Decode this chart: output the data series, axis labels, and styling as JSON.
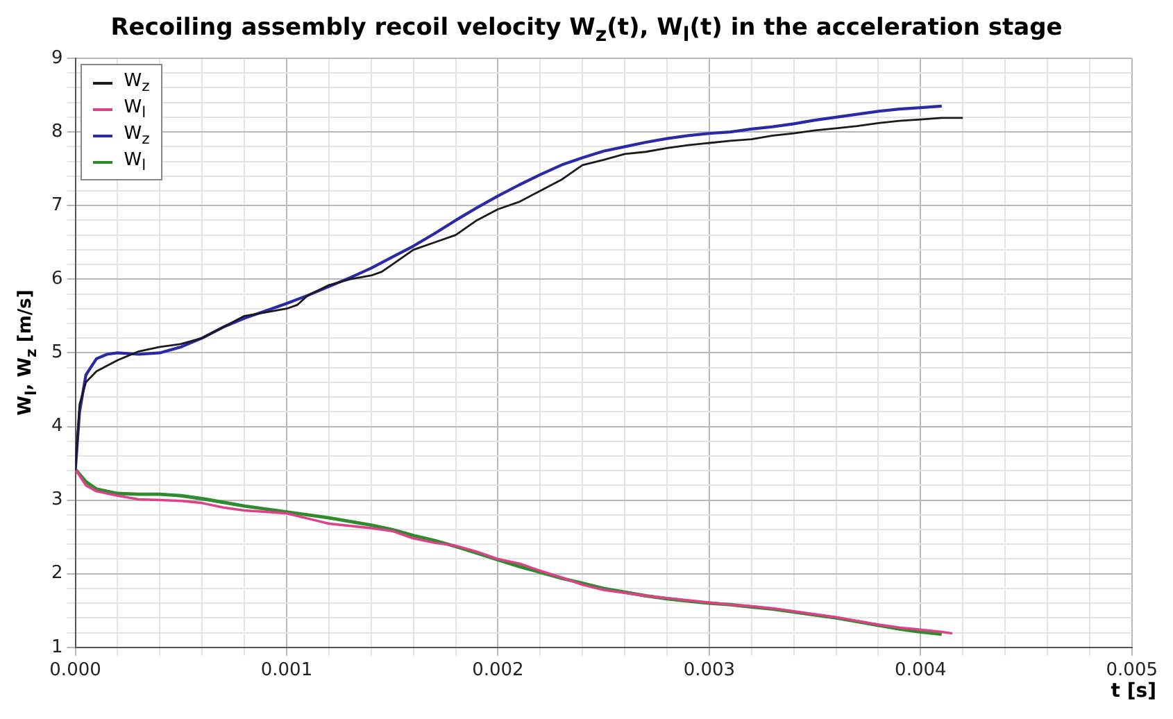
{
  "chart_data": {
    "type": "line",
    "title": "Recoiling assembly recoil velocity W$_{z}$(t), W$_{l}$(t) in the acceleration stage",
    "xlabel": "t [s]",
    "ylabel": "W$_{l}$, W$_{z}$ [m/s]",
    "xlim": [
      0,
      0.005
    ],
    "ylim": [
      1,
      9
    ],
    "xticks": [
      {
        "value": 0,
        "label": "0.000"
      },
      {
        "value": 0.0002,
        "label": null
      },
      {
        "value": 0.0004,
        "label": null
      },
      {
        "value": 0.0006,
        "label": null
      },
      {
        "value": 0.0008,
        "label": null
      },
      {
        "value": 0.001,
        "label": "0.001"
      },
      {
        "value": 0.0012,
        "label": null
      },
      {
        "value": 0.0014,
        "label": null
      },
      {
        "value": 0.0016,
        "label": null
      },
      {
        "value": 0.0018,
        "label": null
      },
      {
        "value": 0.002,
        "label": "0.002"
      },
      {
        "value": 0.0022,
        "label": null
      },
      {
        "value": 0.0024,
        "label": null
      },
      {
        "value": 0.0026,
        "label": null
      },
      {
        "value": 0.0028,
        "label": null
      },
      {
        "value": 0.003,
        "label": "0.003"
      },
      {
        "value": 0.0032,
        "label": null
      },
      {
        "value": 0.0034,
        "label": null
      },
      {
        "value": 0.0036,
        "label": null
      },
      {
        "value": 0.0038,
        "label": null
      },
      {
        "value": 0.004,
        "label": "0.004"
      },
      {
        "value": 0.0042,
        "label": null
      },
      {
        "value": 0.0044,
        "label": null
      },
      {
        "value": 0.0046,
        "label": null
      },
      {
        "value": 0.0048,
        "label": null
      },
      {
        "value": 0.005,
        "label": "0.005"
      }
    ],
    "yticks": [
      1,
      {
        "value": 1.2,
        "label": null
      },
      {
        "value": 1.4,
        "label": null
      },
      {
        "value": 1.6,
        "label": null
      },
      {
        "value": 1.8,
        "label": null
      },
      2,
      {
        "value": 2.2,
        "label": null
      },
      {
        "value": 2.4,
        "label": null
      },
      {
        "value": 2.6,
        "label": null
      },
      {
        "value": 2.8,
        "label": null
      },
      3,
      {
        "value": 3.2,
        "label": null
      },
      {
        "value": 3.4,
        "label": null
      },
      {
        "value": 3.6,
        "label": null
      },
      {
        "value": 3.8,
        "label": null
      },
      4,
      {
        "value": 4.2,
        "label": null
      },
      {
        "value": 4.4,
        "label": null
      },
      {
        "value": 4.6,
        "label": null
      },
      {
        "value": 4.8,
        "label": null
      },
      5,
      {
        "value": 5.2,
        "label": null
      },
      {
        "value": 5.4,
        "label": null
      },
      {
        "value": 5.6,
        "label": null
      },
      {
        "value": 5.8,
        "label": null
      },
      6,
      {
        "value": 6.2,
        "label": null
      },
      {
        "value": 6.4,
        "label": null
      },
      {
        "value": 6.6,
        "label": null
      },
      {
        "value": 6.8,
        "label": null
      },
      7,
      {
        "value": 7.2,
        "label": null
      },
      {
        "value": 7.4,
        "label": null
      },
      {
        "value": 7.6,
        "label": null
      },
      {
        "value": 7.8,
        "label": null
      },
      8,
      {
        "value": 8.2,
        "label": null
      },
      {
        "value": 8.4,
        "label": null
      },
      {
        "value": 8.6,
        "label": null
      },
      {
        "value": 8.8,
        "label": null
      },
      9
    ],
    "grid": true,
    "legend": "top left",
    "marker": "none",
    "line_style": "solid",
    "series": [
      {
        "name": "W$_{z}$",
        "color": "#1a1a1a",
        "x": [
          0,
          2e-05,
          5e-05,
          0.0001,
          0.0002,
          0.0003,
          0.0004,
          0.0005,
          0.0006,
          0.0007,
          0.0008,
          0.0009,
          0.001,
          0.00105,
          0.0011,
          0.0012,
          0.0013,
          0.0014,
          0.00145,
          0.0015,
          0.0016,
          0.0017,
          0.0018,
          0.0019,
          0.002,
          0.0021,
          0.0022,
          0.0023,
          0.0024,
          0.0025,
          0.0026,
          0.0027,
          0.0028,
          0.0029,
          0.003,
          0.0031,
          0.0032,
          0.0033,
          0.0034,
          0.0035,
          0.0036,
          0.0037,
          0.0038,
          0.0039,
          0.004,
          0.0041,
          0.0042
        ],
        "values": [
          3.4,
          4.3,
          4.6,
          4.75,
          4.9,
          5.02,
          5.08,
          5.12,
          5.2,
          5.35,
          5.5,
          5.55,
          5.6,
          5.65,
          5.78,
          5.92,
          6.0,
          6.05,
          6.1,
          6.2,
          6.4,
          6.5,
          6.6,
          6.8,
          6.95,
          7.05,
          7.2,
          7.35,
          7.55,
          7.62,
          7.7,
          7.73,
          7.78,
          7.82,
          7.85,
          7.88,
          7.9,
          7.95,
          7.98,
          8.02,
          8.05,
          8.08,
          8.12,
          8.15,
          8.17,
          8.19,
          8.19
        ]
      },
      {
        "name": "W$_{l}$",
        "color": "#e0408a",
        "x": [
          0,
          5e-05,
          0.0001,
          0.0002,
          0.0003,
          0.0004,
          0.0005,
          0.0006,
          0.0007,
          0.0008,
          0.0009,
          0.001,
          0.0011,
          0.0012,
          0.0013,
          0.0014,
          0.0015,
          0.0016,
          0.0017,
          0.0018,
          0.0019,
          0.002,
          0.0021,
          0.0022,
          0.0023,
          0.0024,
          0.0025,
          0.0026,
          0.0027,
          0.0028,
          0.0029,
          0.003,
          0.0031,
          0.0032,
          0.0033,
          0.0034,
          0.0035,
          0.0036,
          0.0037,
          0.0038,
          0.0039,
          0.004,
          0.0041,
          0.00415
        ],
        "values": [
          3.42,
          3.2,
          3.12,
          3.06,
          3.01,
          3.0,
          2.99,
          2.96,
          2.9,
          2.86,
          2.84,
          2.82,
          2.75,
          2.68,
          2.65,
          2.62,
          2.58,
          2.48,
          2.42,
          2.38,
          2.3,
          2.2,
          2.14,
          2.04,
          1.95,
          1.85,
          1.78,
          1.74,
          1.7,
          1.67,
          1.64,
          1.61,
          1.58,
          1.56,
          1.53,
          1.49,
          1.45,
          1.41,
          1.36,
          1.31,
          1.27,
          1.24,
          1.21,
          1.19
        ]
      },
      {
        "name": "W$_{z}$",
        "color": "#2a2aa8",
        "x": [
          0,
          2e-05,
          5e-05,
          0.0001,
          0.00015,
          0.0002,
          0.0003,
          0.0004,
          0.0005,
          0.0006,
          0.0007,
          0.0008,
          0.0009,
          0.001,
          0.0011,
          0.0012,
          0.0013,
          0.0014,
          0.0015,
          0.0016,
          0.0017,
          0.0018,
          0.0019,
          0.002,
          0.0021,
          0.0022,
          0.0023,
          0.0024,
          0.0025,
          0.0026,
          0.0027,
          0.0028,
          0.0029,
          0.003,
          0.0031,
          0.0032,
          0.0033,
          0.0034,
          0.0035,
          0.0036,
          0.0037,
          0.0038,
          0.0039,
          0.004,
          0.0041
        ],
        "values": [
          3.4,
          4.2,
          4.7,
          4.92,
          4.98,
          5.0,
          4.98,
          5.0,
          5.08,
          5.2,
          5.35,
          5.47,
          5.57,
          5.67,
          5.78,
          5.9,
          6.02,
          6.15,
          6.3,
          6.45,
          6.62,
          6.8,
          6.97,
          7.13,
          7.28,
          7.42,
          7.55,
          7.65,
          7.74,
          7.8,
          7.86,
          7.91,
          7.95,
          7.98,
          8.0,
          8.04,
          8.07,
          8.11,
          8.16,
          8.2,
          8.24,
          8.28,
          8.31,
          8.33,
          8.35
        ]
      },
      {
        "name": "W$_{l}$",
        "color": "#2e8b2e",
        "x": [
          0,
          5e-05,
          0.0001,
          0.0002,
          0.0003,
          0.0004,
          0.0005,
          0.0006,
          0.0007,
          0.0008,
          0.0009,
          0.001,
          0.0011,
          0.0012,
          0.0013,
          0.0014,
          0.0015,
          0.0016,
          0.0017,
          0.0018,
          0.0019,
          0.002,
          0.0021,
          0.0022,
          0.0023,
          0.0024,
          0.0025,
          0.0026,
          0.0027,
          0.0028,
          0.0029,
          0.003,
          0.0031,
          0.0032,
          0.0033,
          0.0034,
          0.0035,
          0.0036,
          0.0037,
          0.0038,
          0.0039,
          0.004,
          0.0041
        ],
        "values": [
          3.42,
          3.25,
          3.15,
          3.09,
          3.08,
          3.08,
          3.06,
          3.02,
          2.97,
          2.92,
          2.88,
          2.84,
          2.8,
          2.76,
          2.71,
          2.66,
          2.6,
          2.52,
          2.45,
          2.37,
          2.28,
          2.19,
          2.1,
          2.02,
          1.94,
          1.87,
          1.8,
          1.75,
          1.7,
          1.66,
          1.63,
          1.6,
          1.58,
          1.55,
          1.52,
          1.48,
          1.44,
          1.4,
          1.35,
          1.3,
          1.25,
          1.21,
          1.18
        ]
      }
    ]
  }
}
